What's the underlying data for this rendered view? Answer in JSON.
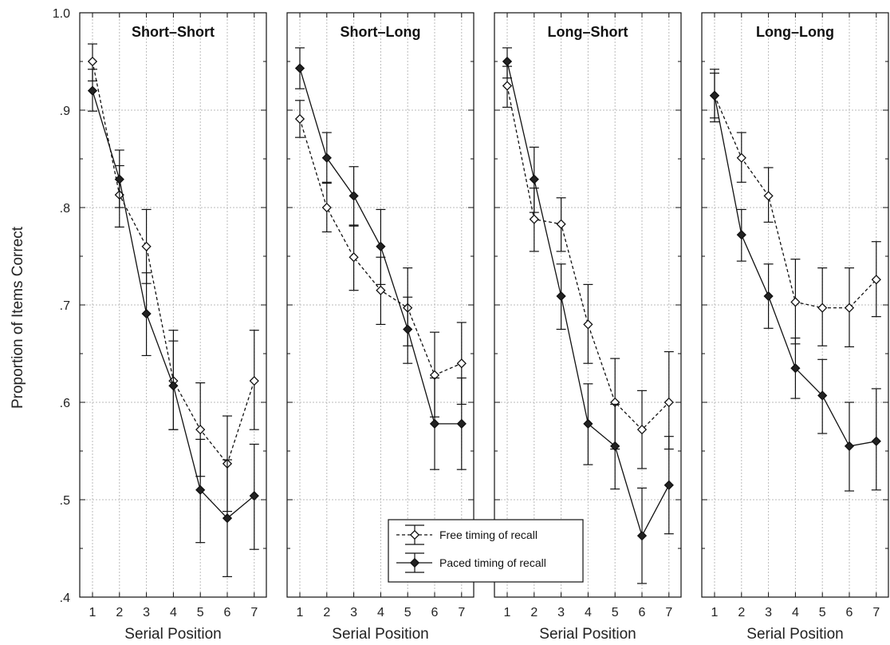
{
  "chart_data": {
    "type": "line",
    "ylabel": "Proportion of Items Correct",
    "xlabel": "Serial Position",
    "x": [
      1,
      2,
      3,
      4,
      5,
      6,
      7
    ],
    "ylim": [
      0.4,
      1.0
    ],
    "y_ticks": [
      0.4,
      0.5,
      0.6,
      0.7,
      0.8,
      0.9,
      1.0
    ],
    "y_tick_labels": [
      ".4",
      ".5",
      ".6",
      ".7",
      ".8",
      ".9",
      "1.0"
    ],
    "x_tick_labels": [
      "1",
      "2",
      "3",
      "4",
      "5",
      "6",
      "7"
    ],
    "grid": true,
    "legend_placement": "bottom-center",
    "legend": [
      {
        "label": "Free timing of recall",
        "style": "dashed",
        "marker": "open-diamond"
      },
      {
        "label": "Paced timing of recall",
        "style": "solid",
        "marker": "filled-diamond"
      }
    ],
    "colors": {
      "line": "#111111",
      "grid": "#bbbbbb",
      "open_fill": "#ffffff",
      "filled_fill": "#222222"
    },
    "panels": [
      {
        "title": "Short–Short",
        "series": [
          {
            "name": "Free timing of recall",
            "values": [
              0.95,
              0.813,
              0.76,
              0.622,
              0.572,
              0.537,
              0.622
            ],
            "err_low": [
              0.93,
              0.78,
              0.722,
              0.572,
              0.524,
              0.488,
              0.572
            ],
            "err_high": [
              0.968,
              0.843,
              0.798,
              0.674,
              0.62,
              0.586,
              0.674
            ]
          },
          {
            "name": "Paced timing of recall",
            "values": [
              0.92,
              0.829,
              0.691,
              0.617,
              0.51,
              0.481,
              0.504
            ],
            "err_low": [
              0.899,
              0.8,
              0.648,
              0.572,
              0.456,
              0.421,
              0.449
            ],
            "err_high": [
              0.942,
              0.859,
              0.733,
              0.663,
              0.562,
              0.541,
              0.557
            ]
          }
        ]
      },
      {
        "title": "Short–Long",
        "series": [
          {
            "name": "Free timing of recall",
            "values": [
              0.891,
              0.8,
              0.749,
              0.715,
              0.697,
              0.628,
              0.64
            ],
            "err_low": [
              0.872,
              0.775,
              0.715,
              0.68,
              0.658,
              0.585,
              0.598
            ],
            "err_high": [
              0.91,
              0.826,
              0.782,
              0.749,
              0.738,
              0.672,
              0.682
            ]
          },
          {
            "name": "Paced timing of recall",
            "values": [
              0.943,
              0.851,
              0.812,
              0.76,
              0.675,
              0.578,
              0.578
            ],
            "err_low": [
              0.922,
              0.825,
              0.781,
              0.721,
              0.64,
              0.531,
              0.531
            ],
            "err_high": [
              0.964,
              0.877,
              0.842,
              0.798,
              0.708,
              0.625,
              0.625
            ]
          }
        ]
      },
      {
        "title": "Long–Short",
        "series": [
          {
            "name": "Free timing of recall",
            "values": [
              0.925,
              0.788,
              0.783,
              0.68,
              0.6,
              0.572,
              0.6
            ],
            "err_low": [
              0.903,
              0.755,
              0.755,
              0.64,
              0.552,
              0.532,
              0.552
            ],
            "err_high": [
              0.945,
              0.82,
              0.81,
              0.721,
              0.645,
              0.612,
              0.652
            ]
          },
          {
            "name": "Paced timing of recall",
            "values": [
              0.95,
              0.829,
              0.709,
              0.578,
              0.555,
              0.463,
              0.515
            ],
            "err_low": [
              0.933,
              0.795,
              0.675,
              0.536,
              0.511,
              0.414,
              0.465
            ],
            "err_high": [
              0.964,
              0.862,
              0.742,
              0.619,
              0.598,
              0.512,
              0.565
            ]
          }
        ]
      },
      {
        "title": "Long–Long",
        "series": [
          {
            "name": "Free timing of recall",
            "values": [
              0.915,
              0.851,
              0.812,
              0.703,
              0.697,
              0.697,
              0.726
            ],
            "err_low": [
              0.892,
              0.826,
              0.785,
              0.66,
              0.658,
              0.657,
              0.688
            ],
            "err_high": [
              0.942,
              0.877,
              0.841,
              0.747,
              0.738,
              0.738,
              0.765
            ]
          },
          {
            "name": "Paced timing of recall",
            "values": [
              0.915,
              0.772,
              0.709,
              0.635,
              0.607,
              0.555,
              0.56
            ],
            "err_low": [
              0.888,
              0.745,
              0.676,
              0.604,
              0.568,
              0.509,
              0.51
            ],
            "err_high": [
              0.938,
              0.798,
              0.742,
              0.666,
              0.644,
              0.6,
              0.614
            ]
          }
        ]
      }
    ]
  }
}
